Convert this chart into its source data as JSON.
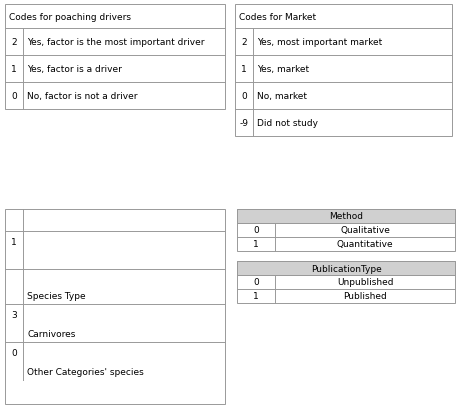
{
  "poaching_drivers": {
    "title": "Codes for poaching drivers",
    "rows": [
      [
        "2",
        "Yes, factor is the most important driver"
      ],
      [
        "1",
        "Yes, factor is a driver"
      ],
      [
        "0",
        "No, factor is not a driver"
      ]
    ]
  },
  "market": {
    "title": "Codes for Market",
    "rows": [
      [
        "2",
        "Yes, most important market"
      ],
      [
        "1",
        "Yes, market"
      ],
      [
        "0",
        "No, market"
      ],
      [
        "-9",
        "Did not study"
      ]
    ]
  },
  "species_rows": [
    [
      "",
      "",
      22
    ],
    [
      "1",
      "",
      38
    ],
    [
      "",
      "Species Type",
      35
    ],
    [
      "3",
      "Carnivores",
      38
    ],
    [
      "0",
      "Other Categories' species",
      38
    ]
  ],
  "method": {
    "title": "Method",
    "rows": [
      [
        "0",
        "Qualitative"
      ],
      [
        "1",
        "Quantitative"
      ]
    ]
  },
  "publication": {
    "title": "PublicationType",
    "rows": [
      [
        "0",
        "Unpublished"
      ],
      [
        "1",
        "Published"
      ]
    ]
  },
  "bg_color": "#ffffff",
  "border_color": "#999999",
  "font_size": 6.5,
  "title_font_size": 6.5
}
